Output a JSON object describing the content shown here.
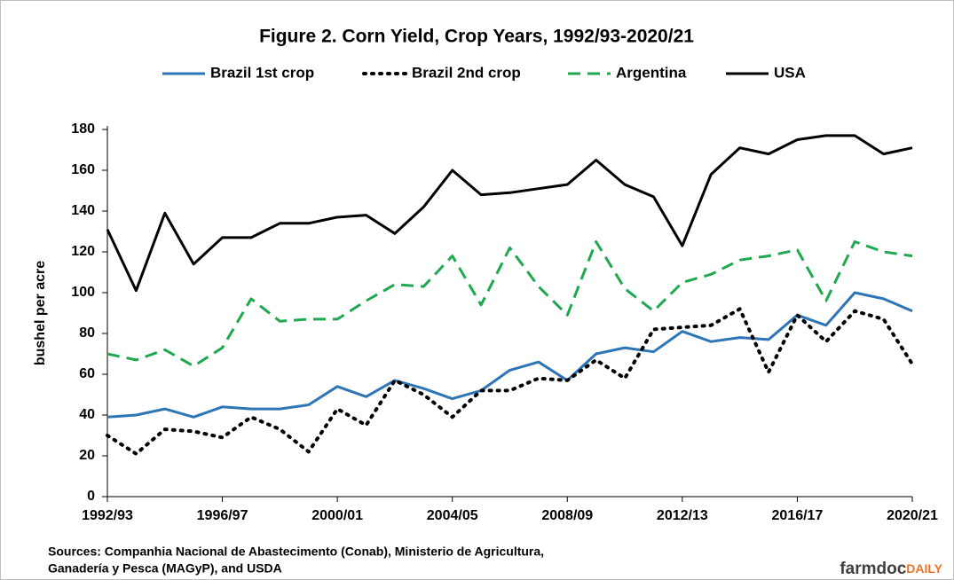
{
  "chart_data": {
    "type": "line",
    "title": "Figure 2. Corn Yield, Crop Years, 1992/93-2020/21",
    "y_label": "bushel per acre",
    "categories": [
      "1992/93",
      null,
      null,
      null,
      "1996/97",
      null,
      null,
      null,
      "2000/01",
      null,
      null,
      null,
      "2004/05",
      null,
      null,
      null,
      "2008/09",
      null,
      null,
      null,
      "2012/13",
      null,
      null,
      null,
      "2016/17",
      null,
      null,
      null,
      "2020/21"
    ],
    "series": [
      {
        "name": "Brazil 1st crop",
        "color": "#2e75b6",
        "dash": "solid",
        "values": [
          39,
          40,
          43,
          39,
          44,
          43,
          43,
          45,
          54,
          49,
          57,
          53,
          48,
          52,
          62,
          66,
          57,
          70,
          73,
          71,
          81,
          76,
          78,
          77,
          89,
          84,
          100,
          97,
          91
        ]
      },
      {
        "name": "Brazil 2nd crop",
        "color": "#000000",
        "dash": "dotted",
        "values": [
          30,
          21,
          33,
          32,
          29,
          39,
          33,
          22,
          43,
          35,
          57,
          50,
          39,
          52,
          52,
          58,
          57,
          67,
          58,
          82,
          83,
          84,
          92,
          61,
          89,
          76,
          91,
          87,
          65
        ]
      },
      {
        "name": "Argentina",
        "color": "#1fa84f",
        "dash": "dashed",
        "values": [
          70,
          67,
          72,
          64,
          73,
          97,
          86,
          87,
          87,
          96,
          104,
          103,
          118,
          94,
          122,
          103,
          89,
          125,
          102,
          91,
          105,
          109,
          116,
          118,
          121,
          96,
          125,
          120,
          118
        ]
      },
      {
        "name": "USA",
        "color": "#000000",
        "dash": "solid",
        "values": [
          131,
          101,
          139,
          114,
          127,
          127,
          134,
          134,
          137,
          138,
          129,
          142,
          160,
          148,
          149,
          151,
          153,
          165,
          153,
          147,
          123,
          158,
          171,
          168,
          175,
          177,
          177,
          168,
          171
        ]
      }
    ],
    "ylim": [
      0,
      180
    ],
    "yticks": [
      0,
      20,
      40,
      60,
      80,
      100,
      120,
      140,
      160,
      180
    ],
    "grid": false,
    "legend": "top",
    "source": [
      "Sources: Companhia Nacional de Abastecimento (Conab), Ministerio de Agricultura,",
      "Ganadería y Pesca (MAGyP), and USDA"
    ],
    "brand": [
      "farmdoc",
      "DAILY"
    ]
  }
}
